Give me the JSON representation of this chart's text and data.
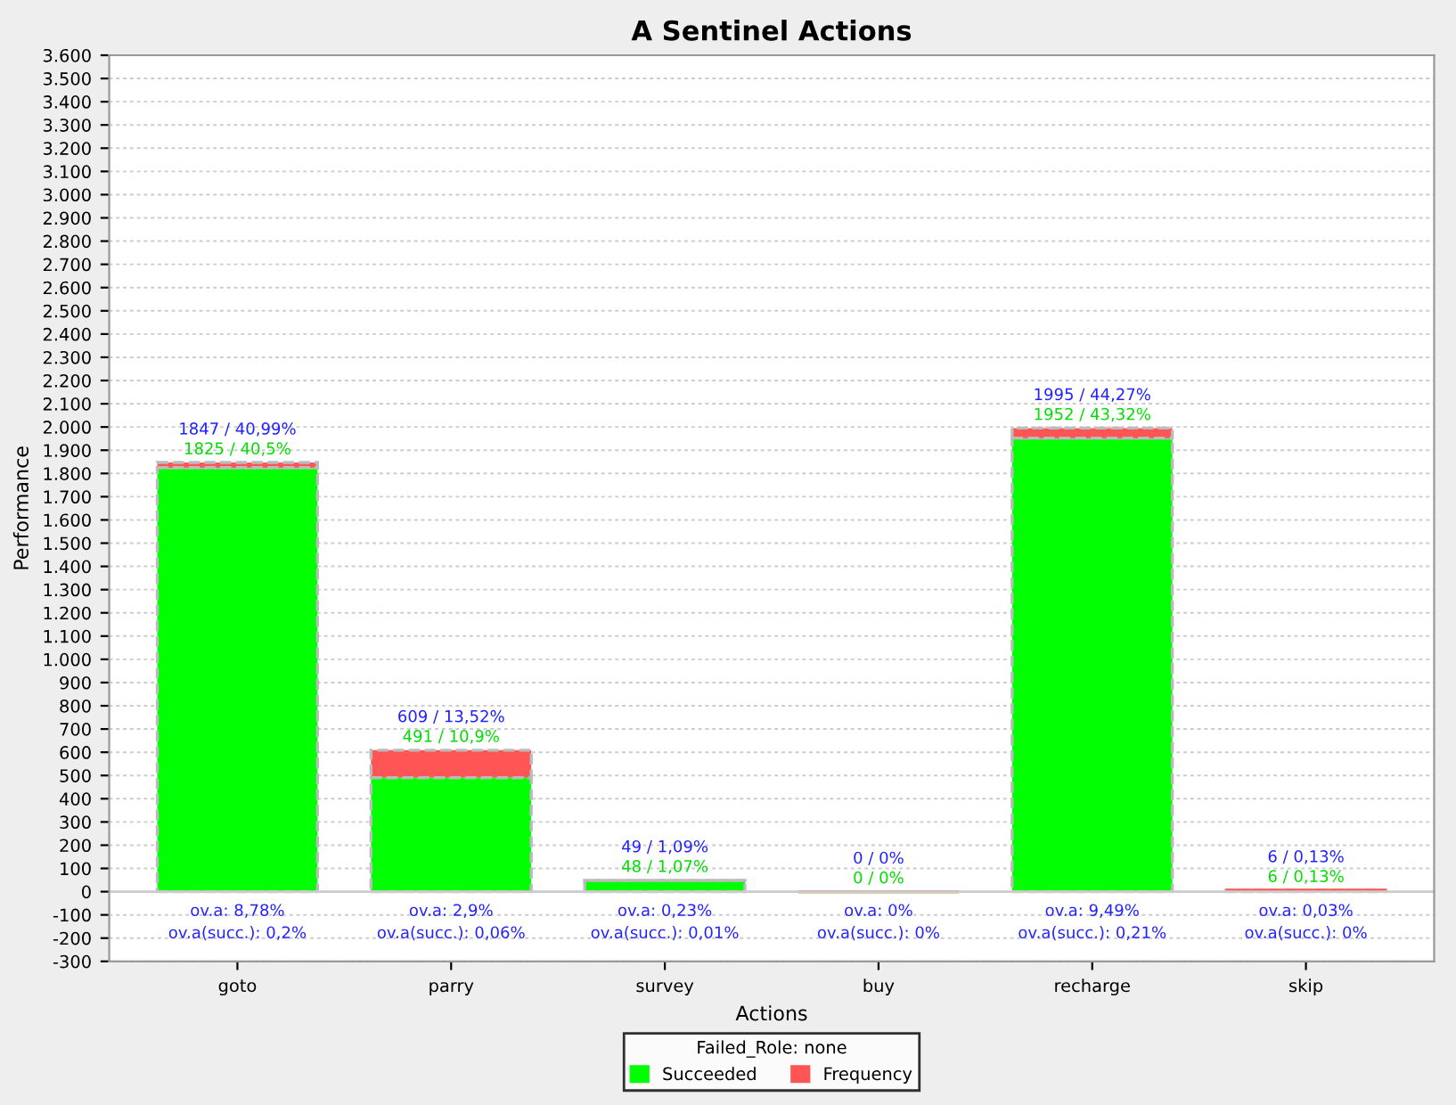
{
  "chart_data": {
    "type": "bar",
    "title": "A Sentinel Actions",
    "xlabel": "Actions",
    "ylabel": "Performance",
    "legend_title": "Failed_Role: none",
    "categories": [
      "goto",
      "parry",
      "survey",
      "buy",
      "recharge",
      "skip"
    ],
    "stacked": true,
    "series": [
      {
        "name": "Succeeded",
        "color": "#00ff00",
        "values": [
          1825,
          491,
          48,
          0,
          1952,
          6
        ],
        "value_labels": [
          "1825 / 40,5%",
          "491 / 10,9%",
          "48 / 1,07%",
          "0 / 0%",
          "1952 / 43,32%",
          "6 / 0,13%"
        ]
      },
      {
        "name": "Frequency",
        "color": "#ff5555",
        "values": [
          22,
          118,
          1,
          0,
          43,
          0
        ]
      }
    ],
    "totals": [
      "1847 / 40,99%",
      "609 / 13,52%",
      "49 / 1,09%",
      "0 / 0%",
      "1995 / 44,27%",
      "6 / 0,13%"
    ],
    "annotations": [
      "ov.a: 8,78%",
      "ov.a(succ.): 0,2%",
      "ov.a: 2,9%",
      "ov.a(succ.): 0,06%",
      "ov.a: 0,23%",
      "ov.a(succ.): 0,01%",
      "ov.a: 0%",
      "ov.a(succ.): 0%",
      "ov.a: 9,49%",
      "ov.a(succ.): 0,21%",
      "ov.a: 0,03%",
      "ov.a(succ.): 0%"
    ],
    "ylim": [
      -300,
      3600
    ],
    "yticks": [
      -300,
      -200,
      -100,
      0,
      100,
      200,
      300,
      400,
      500,
      600,
      700,
      800,
      900,
      {
        "value": 1000,
        "label": "1.000"
      },
      {
        "value": 1100,
        "label": "1.100"
      },
      {
        "value": 1200,
        "label": "1.200"
      },
      {
        "value": 1300,
        "label": "1.300"
      },
      {
        "value": 1400,
        "label": "1.400"
      },
      {
        "value": 1500,
        "label": "1.500"
      },
      {
        "value": 1600,
        "label": "1.600"
      },
      {
        "value": 1700,
        "label": "1.700"
      },
      {
        "value": 1800,
        "label": "1.800"
      },
      {
        "value": 1900,
        "label": "1.900"
      },
      {
        "value": 2000,
        "label": "2.000"
      },
      {
        "value": 2100,
        "label": "2.100"
      },
      {
        "value": 2200,
        "label": "2.200"
      },
      {
        "value": 2300,
        "label": "2.300"
      },
      {
        "value": 2400,
        "label": "2.400"
      },
      {
        "value": 2500,
        "label": "2.500"
      },
      {
        "value": 2600,
        "label": "2.600"
      },
      {
        "value": 2700,
        "label": "2.700"
      },
      {
        "value": 2800,
        "label": "2.800"
      },
      {
        "value": 2900,
        "label": "2.900"
      },
      {
        "value": 3000,
        "label": "3.000"
      },
      {
        "value": 3100,
        "label": "3.100"
      },
      {
        "value": 3200,
        "label": "3.200"
      },
      {
        "value": 3300,
        "label": "3.300"
      },
      {
        "value": 3400,
        "label": "3.400"
      },
      {
        "value": 3500,
        "label": "3.500"
      },
      {
        "value": 3600,
        "label": "3.600"
      }
    ],
    "grid": "y",
    "legend": "bottom"
  }
}
